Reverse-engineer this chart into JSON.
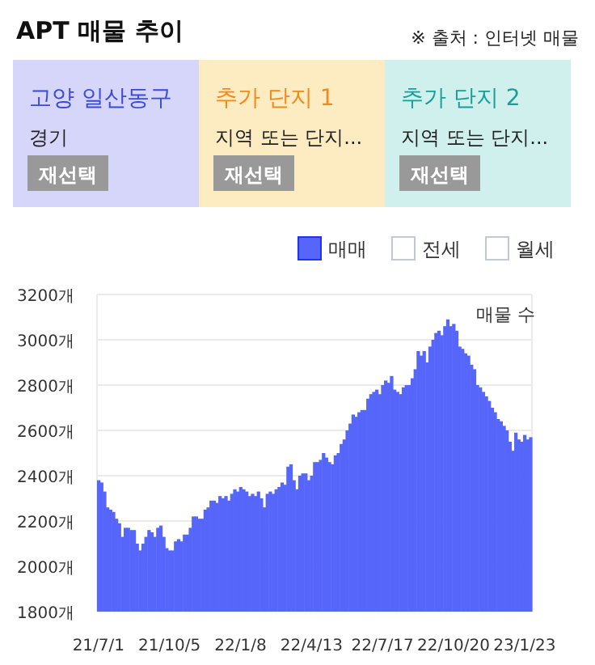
{
  "chart_data": [
    {
      "type": "other",
      "title": "APT 매물 추이",
      "annotations": [
        "※ 출처 : 인터넷 매물",
        "고양 일산동구",
        "경기",
        "재선택",
        "추가 단지 1",
        "지역 또는 단지...",
        "재선택",
        "추가 단지 2",
        "지역 또는 단지...",
        "재선택"
      ],
      "colors": [
        "#d5d6fa",
        "#fdecc2",
        "#d0f0ee"
      ]
    },
    {
      "type": "bar",
      "ylabel": "매물 수",
      "legend": "top right",
      "grid": "y",
      "ylim": [
        1800,
        3200
      ],
      "yticks": [
        {
          "value": 1800,
          "label": "1800개"
        },
        {
          "value": 2000,
          "label": "2000개"
        },
        {
          "value": 2200,
          "label": "2200개"
        },
        {
          "value": 2400,
          "label": "2400개"
        },
        {
          "value": 2600,
          "label": "2600개"
        },
        {
          "value": 2800,
          "label": "2800개"
        },
        {
          "value": 3000,
          "label": "3000개"
        },
        {
          "value": 3200,
          "label": "3200개"
        }
      ],
      "categories": [
        "21/7/1",
        null,
        null,
        null,
        null,
        null,
        null,
        null,
        null,
        null,
        null,
        null,
        null,
        null,
        null,
        null,
        null,
        null,
        null,
        null,
        null,
        null,
        null,
        null,
        "21/10/5",
        null,
        null,
        null,
        null,
        null,
        null,
        null,
        null,
        null,
        null,
        null,
        null,
        null,
        null,
        null,
        null,
        null,
        null,
        null,
        null,
        null,
        null,
        null,
        "22/1/8",
        null,
        null,
        null,
        null,
        null,
        null,
        null,
        null,
        null,
        null,
        null,
        null,
        null,
        null,
        null,
        null,
        null,
        null,
        null,
        null,
        null,
        null,
        null,
        "22/4/13",
        null,
        null,
        null,
        null,
        null,
        null,
        null,
        null,
        null,
        null,
        null,
        null,
        null,
        null,
        null,
        null,
        null,
        null,
        null,
        null,
        null,
        null,
        null,
        "22/7/17",
        null,
        null,
        null,
        null,
        null,
        null,
        null,
        null,
        null,
        null,
        null,
        null,
        null,
        null,
        null,
        null,
        null,
        null,
        null,
        null,
        null,
        null,
        null,
        "22/10/20",
        null,
        null,
        null,
        null,
        null,
        null,
        null,
        null,
        null,
        null,
        null,
        null,
        null,
        null,
        null,
        null,
        null,
        null,
        null,
        null,
        null,
        null,
        null,
        "23/1/23",
        null,
        null
      ],
      "series": [
        {
          "name": "매매",
          "color": "#5766fa",
          "values": [
            2380,
            2370,
            2330,
            2260,
            2250,
            2240,
            2210,
            2190,
            2130,
            2170,
            2170,
            2160,
            2160,
            2100,
            2070,
            2100,
            2130,
            2160,
            2150,
            2130,
            2170,
            2180,
            2130,
            2080,
            2070,
            2070,
            2110,
            2120,
            2110,
            2140,
            2140,
            2170,
            2220,
            2220,
            2210,
            2210,
            2250,
            2260,
            2290,
            2290,
            2280,
            2310,
            2300,
            2310,
            2290,
            2320,
            2340,
            2330,
            2350,
            2340,
            2330,
            2310,
            2320,
            2310,
            2330,
            2300,
            2260,
            2320,
            2330,
            2320,
            2340,
            2350,
            2370,
            2360,
            2440,
            2450,
            2380,
            2340,
            2400,
            2410,
            2410,
            2380,
            2400,
            2460,
            2460,
            2470,
            2500,
            2480,
            2460,
            2450,
            2490,
            2500,
            2540,
            2560,
            2600,
            2630,
            2670,
            2660,
            2680,
            2690,
            2690,
            2740,
            2760,
            2770,
            2780,
            2760,
            2800,
            2820,
            2810,
            2840,
            2780,
            2770,
            2760,
            2790,
            2800,
            2800,
            2830,
            2870,
            2950,
            2930,
            2950,
            2900,
            2970,
            3000,
            3030,
            3040,
            3020,
            3060,
            3090,
            3060,
            3070,
            3040,
            2970,
            2960,
            2940,
            2930,
            2890,
            2870,
            2800,
            2790,
            2770,
            2750,
            2730,
            2700,
            2680,
            2650,
            2640,
            2620,
            2600,
            2550,
            2510,
            2590,
            2560,
            2550,
            2580,
            2560,
            2570
          ]
        },
        {
          "name": "전세",
          "color": "#ffffff",
          "values": [
            null,
            null,
            null,
            null,
            null,
            null,
            null,
            null,
            null,
            null,
            null,
            null,
            null,
            null,
            null,
            null,
            null,
            null,
            null,
            null,
            null,
            null,
            null,
            null,
            null,
            null,
            null,
            null,
            null,
            null,
            null,
            null,
            null,
            null,
            null,
            null,
            null,
            null,
            null,
            null,
            null,
            null,
            null,
            null,
            null,
            null,
            null,
            null,
            null,
            null,
            null,
            null,
            null,
            null,
            null,
            null,
            null,
            null,
            null,
            null,
            null,
            null,
            null,
            null,
            null,
            null,
            null,
            null,
            null,
            null,
            null,
            null,
            null,
            null,
            null,
            null,
            null,
            null,
            null,
            null,
            null,
            null,
            null,
            null,
            null,
            null,
            null,
            null,
            null,
            null,
            null,
            null,
            null,
            null,
            null,
            null,
            null,
            null,
            null,
            null,
            null,
            null,
            null,
            null,
            null,
            null,
            null,
            null,
            null,
            null,
            null,
            null,
            null,
            null,
            null,
            null,
            null,
            null,
            null,
            null,
            null,
            null,
            null,
            null,
            null,
            null,
            null,
            null,
            null,
            null,
            null,
            null,
            null,
            null,
            null,
            null,
            null,
            null,
            null,
            null,
            null,
            null,
            null,
            null,
            null,
            null,
            null
          ]
        },
        {
          "name": "월세",
          "color": "#ffffff",
          "values": [
            null,
            null,
            null,
            null,
            null,
            null,
            null,
            null,
            null,
            null,
            null,
            null,
            null,
            null,
            null,
            null,
            null,
            null,
            null,
            null,
            null,
            null,
            null,
            null,
            null,
            null,
            null,
            null,
            null,
            null,
            null,
            null,
            null,
            null,
            null,
            null,
            null,
            null,
            null,
            null,
            null,
            null,
            null,
            null,
            null,
            null,
            null,
            null,
            null,
            null,
            null,
            null,
            null,
            null,
            null,
            null,
            null,
            null,
            null,
            null,
            null,
            null,
            null,
            null,
            null,
            null,
            null,
            null,
            null,
            null,
            null,
            null,
            null,
            null,
            null,
            null,
            null,
            null,
            null,
            null,
            null,
            null,
            null,
            null,
            null,
            null,
            null,
            null,
            null,
            null,
            null,
            null,
            null,
            null,
            null,
            null,
            null,
            null,
            null,
            null,
            null,
            null,
            null,
            null,
            null,
            null,
            null,
            null,
            null,
            null,
            null,
            null,
            null,
            null,
            null,
            null,
            null,
            null,
            null,
            null,
            null,
            null,
            null,
            null,
            null,
            null,
            null,
            null,
            null,
            null,
            null,
            null,
            null,
            null,
            null,
            null,
            null,
            null,
            null,
            null,
            null,
            null,
            null,
            null,
            null,
            null,
            null
          ]
        }
      ]
    }
  ]
}
